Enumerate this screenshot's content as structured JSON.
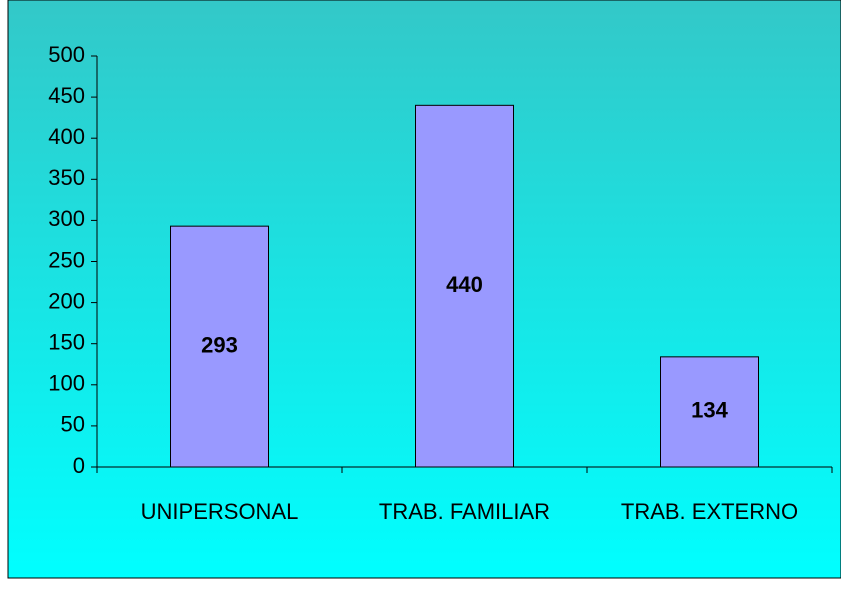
{
  "chart_data": {
    "type": "bar",
    "categories": [
      "UNIPERSONAL",
      "TRAB. FAMILIAR",
      "TRAB. EXTERNO"
    ],
    "values": [
      293,
      440,
      134
    ],
    "color": "#9999ff",
    "ylim": [
      0,
      500
    ],
    "yticks": [
      0,
      50,
      100,
      150,
      200,
      250,
      300,
      350,
      400,
      450,
      500
    ],
    "grid": false
  }
}
